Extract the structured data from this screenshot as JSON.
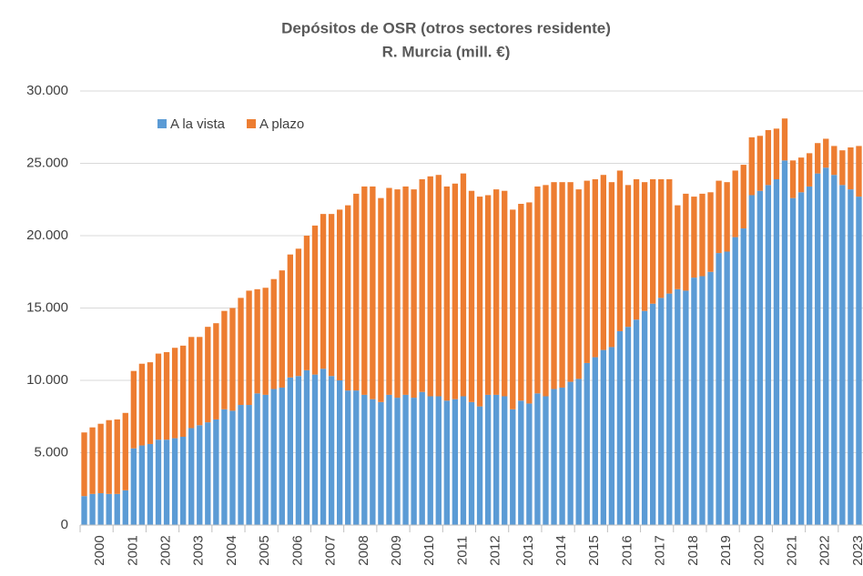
{
  "chart_data": {
    "type": "stacked_bar",
    "title": "Depósitos de OSR (otros sectores residente)",
    "subtitle": "R. Murcia (mill. €)",
    "categories": [
      "2000",
      null,
      null,
      null,
      "2001",
      null,
      null,
      null,
      "2002",
      null,
      null,
      null,
      "2003",
      null,
      null,
      null,
      "2004",
      null,
      null,
      null,
      "2005",
      null,
      null,
      null,
      "2006",
      null,
      null,
      null,
      "2007",
      null,
      null,
      null,
      "2008",
      null,
      null,
      null,
      "2009",
      null,
      null,
      null,
      "2010",
      null,
      null,
      null,
      "2011",
      null,
      null,
      null,
      "2012",
      null,
      null,
      null,
      "2013",
      null,
      null,
      null,
      "2014",
      null,
      null,
      null,
      "2015",
      null,
      null,
      null,
      "2016",
      null,
      null,
      null,
      "2017",
      null,
      null,
      null,
      "2018",
      null,
      null,
      null,
      "2019",
      null,
      null,
      null,
      "2020",
      null,
      null,
      null,
      "2021",
      null,
      null,
      null,
      "2022",
      null,
      null,
      null,
      "2023",
      null,
      null
    ],
    "series": [
      {
        "name": "A la vista",
        "color": "#5b9bd5",
        "values": [
          2000,
          2150,
          2200,
          2150,
          2150,
          2400,
          5300,
          5500,
          5600,
          5900,
          5900,
          6000,
          6100,
          6700,
          6900,
          7100,
          7300,
          8000,
          7900,
          8300,
          8300,
          9100,
          9000,
          9400,
          9500,
          10200,
          10300,
          10700,
          10400,
          10800,
          10300,
          10000,
          9300,
          9300,
          9000,
          8700,
          8500,
          9000,
          8800,
          9000,
          8800,
          9200,
          8900,
          8900,
          8600,
          8700,
          8900,
          8500,
          8200,
          9000,
          9000,
          8900,
          8000,
          8600,
          8400,
          9100,
          8900,
          9400,
          9500,
          9900,
          10100,
          11200,
          11600,
          12100,
          12300,
          13400,
          13700,
          14200,
          14800,
          15300,
          15700,
          16000,
          16300,
          16200,
          17100,
          17200,
          17500,
          18800,
          18900,
          19900,
          20500,
          22800,
          23100,
          23500,
          23900,
          25200,
          22600,
          23000,
          23400,
          24300,
          24700,
          24200,
          23500,
          23200,
          22700
        ]
      },
      {
        "name": "A plazo",
        "color": "#ed7d31",
        "values": [
          4400,
          4600,
          4800,
          5100,
          5150,
          5350,
          5350,
          5650,
          5650,
          5950,
          6050,
          6250,
          6300,
          6300,
          6100,
          6600,
          6650,
          6800,
          7100,
          7400,
          7900,
          7200,
          7400,
          7600,
          8100,
          8500,
          8800,
          9300,
          10300,
          10700,
          11200,
          11800,
          12800,
          13600,
          14400,
          14700,
          14100,
          14300,
          14400,
          14400,
          14400,
          14700,
          15200,
          15300,
          14800,
          14900,
          15400,
          14600,
          14500,
          13800,
          14200,
          14200,
          13800,
          13600,
          13900,
          14300,
          14600,
          14300,
          14200,
          13800,
          13100,
          12600,
          12300,
          12100,
          11400,
          11100,
          9800,
          9700,
          8900,
          8600,
          8200,
          7900,
          5800,
          6700,
          5600,
          5700,
          5500,
          5000,
          4800,
          4600,
          4400,
          4000,
          3800,
          3800,
          3500,
          2900,
          2600,
          2400,
          2300,
          2100,
          2000,
          2000,
          2400,
          2900,
          3500
        ]
      }
    ],
    "ylim": [
      0,
      30000
    ],
    "yticks": [
      0,
      {
        "value": 5000,
        "label": "5.000"
      },
      {
        "value": 10000,
        "label": "10.000"
      },
      {
        "value": 15000,
        "label": "15.000"
      },
      {
        "value": 20000,
        "label": "20.000"
      },
      {
        "value": 25000,
        "label": "25.000"
      },
      {
        "value": 30000,
        "label": "30.000"
      }
    ],
    "grid": true,
    "legend": "top-left"
  }
}
